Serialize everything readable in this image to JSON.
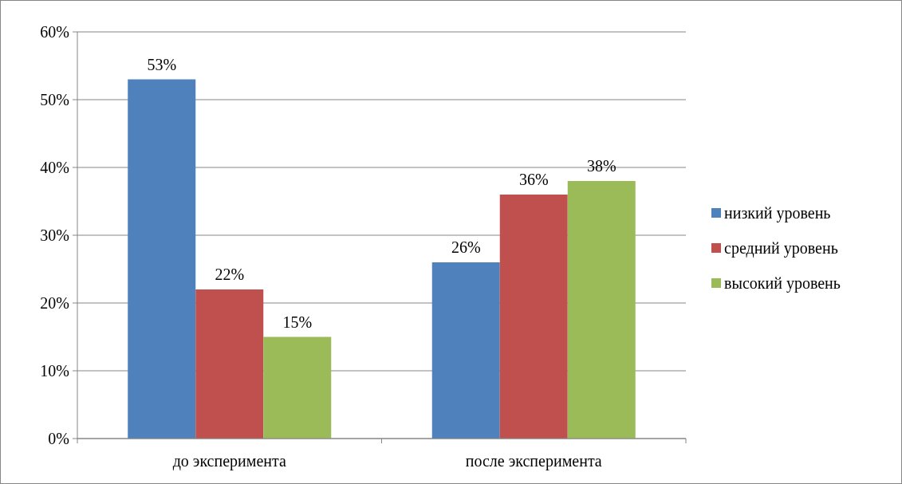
{
  "chart_data": {
    "type": "bar",
    "categories": [
      "до эксперимента",
      "после эксперимента"
    ],
    "series": [
      {
        "name": "низкий уровень",
        "color": "#4f81bd",
        "values": [
          53,
          26
        ],
        "value_labels": [
          "53%",
          "26%"
        ]
      },
      {
        "name": "средний уровень",
        "color": "#c0504d",
        "values": [
          22,
          36
        ],
        "value_labels": [
          "22%",
          "36%"
        ]
      },
      {
        "name": "высокий уровень",
        "color": "#9bbb59",
        "values": [
          15,
          38
        ],
        "value_labels": [
          "15%",
          "38%"
        ]
      }
    ],
    "ylim": [
      0,
      60
    ],
    "yticks": [
      {
        "value": 0,
        "label": "0%"
      },
      {
        "value": 10,
        "label": "10%"
      },
      {
        "value": 20,
        "label": "20%"
      },
      {
        "value": 30,
        "label": "30%"
      },
      {
        "value": 40,
        "label": "40%"
      },
      {
        "value": 50,
        "label": "50%"
      },
      {
        "value": 60,
        "label": "60%"
      }
    ],
    "grid": "y",
    "legend": "right"
  }
}
